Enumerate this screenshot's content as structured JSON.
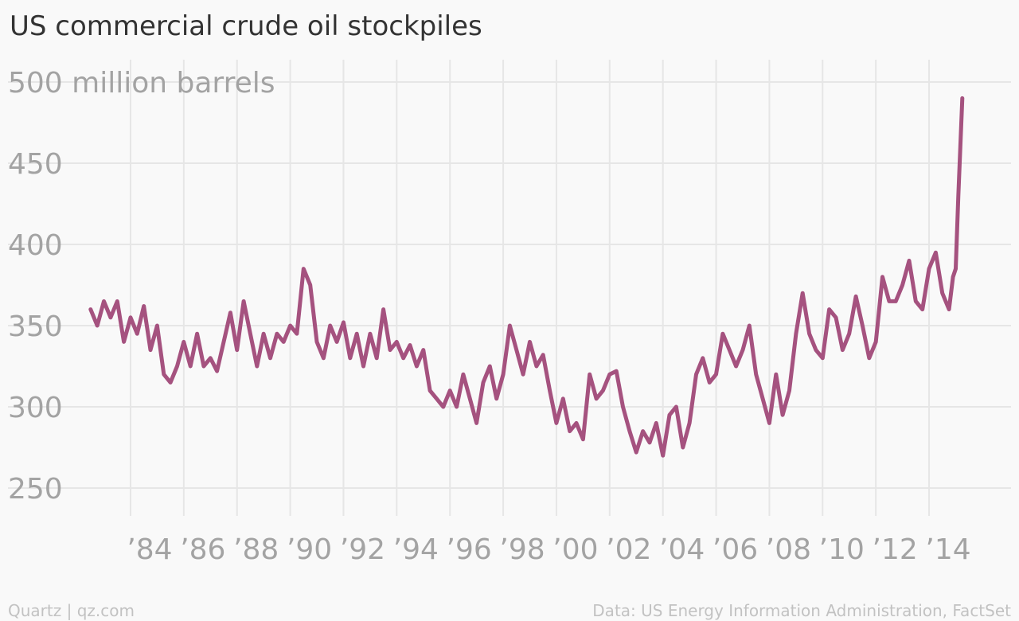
{
  "chart_data": {
    "type": "line",
    "title": "US commercial crude oil stockpiles",
    "credit": "Quartz | qz.com",
    "source": "Data: US Energy Information Administration, FactSet",
    "xlim": [
      1982,
      2016
    ],
    "ylim": [
      250,
      500
    ],
    "xticks": [
      {
        "value": 1984,
        "label": "’84"
      },
      {
        "value": 1986,
        "label": "’86"
      },
      {
        "value": 1988,
        "label": "’88"
      },
      {
        "value": 1990,
        "label": "’90"
      },
      {
        "value": 1992,
        "label": "’92"
      },
      {
        "value": 1994,
        "label": "’94"
      },
      {
        "value": 1996,
        "label": "’96"
      },
      {
        "value": 1998,
        "label": "’98"
      },
      {
        "value": 2000,
        "label": "’00"
      },
      {
        "value": 2002,
        "label": "’02"
      },
      {
        "value": 2004,
        "label": "’04"
      },
      {
        "value": 2006,
        "label": "’06"
      },
      {
        "value": 2008,
        "label": "’08"
      },
      {
        "value": 2010,
        "label": "’10"
      },
      {
        "value": 2012,
        "label": "’12"
      },
      {
        "value": 2014,
        "label": "’14"
      }
    ],
    "yticks": [
      250,
      300,
      350,
      400,
      450,
      {
        "value": 500,
        "label": "500 million barrels"
      }
    ],
    "grid": true,
    "x": [
      1982.5,
      1982.75,
      1983,
      1983.25,
      1983.5,
      1983.75,
      1984,
      1984.25,
      1984.5,
      1984.75,
      1985,
      1985.25,
      1985.5,
      1985.75,
      1986,
      1986.25,
      1986.5,
      1986.75,
      1987,
      1987.25,
      1987.5,
      1987.75,
      1988,
      1988.25,
      1988.5,
      1988.75,
      1989,
      1989.25,
      1989.5,
      1989.75,
      1990,
      1990.25,
      1990.5,
      1990.75,
      1991,
      1991.25,
      1991.5,
      1991.75,
      1992,
      1992.25,
      1992.5,
      1992.75,
      1993,
      1993.25,
      1993.5,
      1993.75,
      1994,
      1994.25,
      1994.5,
      1994.75,
      1995,
      1995.25,
      1995.5,
      1995.75,
      1996,
      1996.25,
      1996.5,
      1996.75,
      1997,
      1997.25,
      1997.5,
      1997.75,
      1998,
      1998.25,
      1998.5,
      1998.75,
      1999,
      1999.25,
      1999.5,
      1999.75,
      2000,
      2000.25,
      2000.5,
      2000.75,
      2001,
      2001.25,
      2001.5,
      2001.75,
      2002,
      2002.25,
      2002.5,
      2002.75,
      2003,
      2003.25,
      2003.5,
      2003.75,
      2004,
      2004.25,
      2004.5,
      2004.75,
      2005,
      2005.25,
      2005.5,
      2005.75,
      2006,
      2006.25,
      2006.5,
      2006.75,
      2007,
      2007.25,
      2007.5,
      2007.75,
      2008,
      2008.25,
      2008.5,
      2008.75,
      2009,
      2009.25,
      2009.5,
      2009.75,
      2010,
      2010.25,
      2010.5,
      2010.75,
      2011,
      2011.25,
      2011.5,
      2011.75,
      2012,
      2012.25,
      2012.5,
      2012.75,
      2013,
      2013.25,
      2013.5,
      2013.75,
      2014,
      2014.25,
      2014.5,
      2014.75,
      2014.9,
      2015,
      2015.1,
      2015.25
    ],
    "series": [
      {
        "name": "US commercial crude oil stockpiles",
        "color": "#a5527f",
        "values": [
          360,
          350,
          365,
          355,
          365,
          340,
          355,
          345,
          362,
          335,
          350,
          320,
          315,
          325,
          340,
          325,
          345,
          325,
          330,
          322,
          340,
          358,
          335,
          365,
          345,
          325,
          345,
          330,
          345,
          340,
          350,
          345,
          385,
          375,
          340,
          330,
          350,
          340,
          352,
          330,
          345,
          325,
          345,
          330,
          360,
          335,
          340,
          330,
          338,
          325,
          335,
          310,
          305,
          300,
          310,
          300,
          320,
          305,
          290,
          315,
          325,
          305,
          320,
          350,
          335,
          320,
          340,
          325,
          332,
          310,
          290,
          305,
          285,
          290,
          280,
          320,
          305,
          310,
          320,
          322,
          300,
          285,
          272,
          285,
          278,
          290,
          270,
          295,
          300,
          275,
          290,
          320,
          330,
          315,
          320,
          345,
          335,
          325,
          335,
          350,
          320,
          305,
          290,
          320,
          295,
          310,
          345,
          370,
          345,
          335,
          330,
          360,
          355,
          335,
          345,
          368,
          350,
          330,
          340,
          380,
          365,
          365,
          375,
          390,
          365,
          360,
          385,
          395,
          370,
          360,
          380,
          385,
          430,
          490
        ]
      }
    ]
  }
}
